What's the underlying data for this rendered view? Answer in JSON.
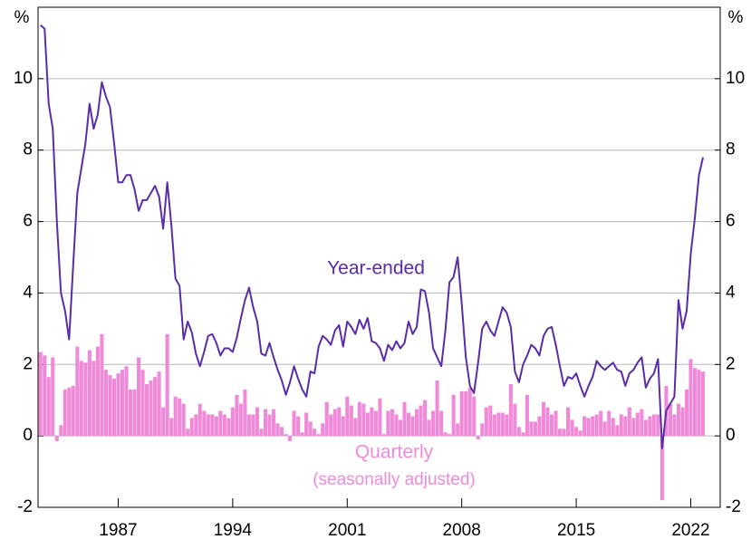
{
  "chart_data": {
    "type": "bar-line",
    "y_unit": "%",
    "annotations": [
      {
        "text": "Year-ended",
        "series": 1
      },
      {
        "text": "Quarterly",
        "series": 0
      },
      {
        "text": "(seasonally adjusted)",
        "series": 0
      }
    ],
    "x": [
      1982.25,
      1982.5,
      1982.75,
      1983,
      1983.25,
      1983.5,
      1983.75,
      1984,
      1984.25,
      1984.5,
      1984.75,
      1985,
      1985.25,
      1985.5,
      1985.75,
      1986,
      1986.25,
      1986.5,
      1986.75,
      1987,
      1987.25,
      1987.5,
      1987.75,
      1988,
      1988.25,
      1988.5,
      1988.75,
      1989,
      1989.25,
      1989.5,
      1989.75,
      1990,
      1990.25,
      1990.5,
      1990.75,
      1991,
      1991.25,
      1991.5,
      1991.75,
      1992,
      1992.25,
      1992.5,
      1992.75,
      1993,
      1993.25,
      1993.5,
      1993.75,
      1994,
      1994.25,
      1994.5,
      1994.75,
      1995,
      1995.25,
      1995.5,
      1995.75,
      1996,
      1996.25,
      1996.5,
      1996.75,
      1997,
      1997.25,
      1997.5,
      1997.75,
      1998,
      1998.25,
      1998.5,
      1998.75,
      1999,
      1999.25,
      1999.5,
      1999.75,
      2000,
      2000.25,
      2000.5,
      2000.75,
      2001,
      2001.25,
      2001.5,
      2001.75,
      2002,
      2002.25,
      2002.5,
      2002.75,
      2003,
      2003.25,
      2003.5,
      2003.75,
      2004,
      2004.25,
      2004.5,
      2004.75,
      2005,
      2005.25,
      2005.5,
      2005.75,
      2006,
      2006.25,
      2006.5,
      2006.75,
      2007,
      2007.25,
      2007.5,
      2007.75,
      2008,
      2008.25,
      2008.5,
      2008.75,
      2009,
      2009.25,
      2009.5,
      2009.75,
      2010,
      2010.25,
      2010.5,
      2010.75,
      2011,
      2011.25,
      2011.5,
      2011.75,
      2012,
      2012.25,
      2012.5,
      2012.75,
      2013,
      2013.25,
      2013.5,
      2013.75,
      2014,
      2014.25,
      2014.5,
      2014.75,
      2015,
      2015.25,
      2015.5,
      2015.75,
      2016,
      2016.25,
      2016.5,
      2016.75,
      2017,
      2017.25,
      2017.5,
      2017.75,
      2018,
      2018.25,
      2018.5,
      2018.75,
      2019,
      2019.25,
      2019.5,
      2019.75,
      2020,
      2020.25,
      2020.5,
      2020.75,
      2021,
      2021.25,
      2021.5,
      2021.75,
      2022,
      2022.25,
      2022.5,
      2022.75
    ],
    "series": [
      {
        "name": "Quarterly",
        "type": "bar",
        "color": "#f08ad8",
        "values": [
          2.35,
          2.25,
          1.65,
          2.2,
          -0.15,
          0.3,
          1.3,
          1.35,
          1.4,
          2.5,
          2.1,
          2.05,
          2.4,
          2.1,
          2.5,
          2.85,
          1.85,
          1.7,
          1.6,
          1.75,
          1.85,
          1.95,
          1.3,
          1.3,
          2.2,
          1.85,
          1.45,
          1.55,
          1.65,
          1.8,
          0.8,
          2.85,
          0.5,
          1.1,
          1.05,
          0.9,
          0.2,
          0.5,
          0.6,
          0.9,
          0.7,
          0.6,
          0.6,
          0.55,
          0.7,
          0.6,
          0.5,
          0.8,
          1.15,
          0.9,
          1.3,
          0.6,
          0.6,
          0.8,
          0.2,
          0.75,
          0.6,
          0.75,
          0.35,
          0.25,
          0.05,
          -0.15,
          0.7,
          0.55,
          0.1,
          0.65,
          0.4,
          0.2,
          0.05,
          0.35,
          0.95,
          0.6,
          0.75,
          0.8,
          0.55,
          1.1,
          0.85,
          0.5,
          0.95,
          0.9,
          0.65,
          0.8,
          0.7,
          1.05,
          0.05,
          0.7,
          0.75,
          0.6,
          0.45,
          0.95,
          0.65,
          0.55,
          0.75,
          0.85,
          1.0,
          0.45,
          0.7,
          1.55,
          0.7,
          0.1,
          0.05,
          1.15,
          0.35,
          1.25,
          1.25,
          1.35,
          1.1,
          -0.1,
          0.35,
          0.8,
          0.85,
          0.6,
          0.65,
          0.65,
          0.6,
          1.45,
          0.9,
          0.25,
          0.1,
          1.15,
          0.4,
          0.4,
          0.55,
          0.95,
          0.8,
          0.6,
          0.7,
          0.2,
          0.2,
          0.8,
          0.45,
          0.25,
          0.15,
          0.55,
          0.5,
          0.55,
          0.6,
          0.7,
          0.4,
          0.7,
          0.5,
          0.3,
          0.6,
          0.55,
          0.8,
          0.5,
          0.65,
          0.75,
          0.45,
          0.55,
          0.6,
          0.6,
          -1.8,
          1.4,
          0.9,
          0.6,
          0.9,
          0.8,
          1.3,
          2.15,
          1.9,
          1.85,
          1.8
        ]
      },
      {
        "name": "Year-ended",
        "type": "line",
        "color": "#5a2ca8",
        "values": [
          11.5,
          11.4,
          9.3,
          8.6,
          6.0,
          4.0,
          3.5,
          2.7,
          4.8,
          6.8,
          7.5,
          8.2,
          9.3,
          8.6,
          9.0,
          9.9,
          9.5,
          9.2,
          8.2,
          7.1,
          7.1,
          7.3,
          7.3,
          6.9,
          6.3,
          6.6,
          6.6,
          6.8,
          7.0,
          6.7,
          5.8,
          7.1,
          5.9,
          4.4,
          4.2,
          2.7,
          3.2,
          2.9,
          2.3,
          1.95,
          2.35,
          2.8,
          2.85,
          2.6,
          2.25,
          2.45,
          2.45,
          2.35,
          2.75,
          3.3,
          3.8,
          4.15,
          3.6,
          3.2,
          2.3,
          2.25,
          2.6,
          2.2,
          1.85,
          1.55,
          1.15,
          1.5,
          1.95,
          1.6,
          1.3,
          1.1,
          1.8,
          1.75,
          2.5,
          2.8,
          2.7,
          2.55,
          2.95,
          3.1,
          2.5,
          3.2,
          3.05,
          2.85,
          3.25,
          3.0,
          3.3,
          2.65,
          2.6,
          2.45,
          2.1,
          2.55,
          2.4,
          2.65,
          2.45,
          2.6,
          3.2,
          2.85,
          3.05,
          4.1,
          4.05,
          3.45,
          2.45,
          2.2,
          1.95,
          2.95,
          4.3,
          4.45,
          5.0,
          3.7,
          2.2,
          1.4,
          1.2,
          2.05,
          3.0,
          3.2,
          2.95,
          2.8,
          3.2,
          3.6,
          3.45,
          3.05,
          1.8,
          1.5,
          2.0,
          2.25,
          2.55,
          2.45,
          2.25,
          2.8,
          3.0,
          3.05,
          2.55,
          1.95,
          1.4,
          1.65,
          1.6,
          1.75,
          1.4,
          1.1,
          1.4,
          1.65,
          2.1,
          1.95,
          1.85,
          1.95,
          2.05,
          1.85,
          1.8,
          1.4,
          1.75,
          1.85,
          2.05,
          2.2,
          1.35,
          1.6,
          1.75,
          2.15,
          -0.35,
          0.7,
          0.9,
          1.1,
          3.8,
          3.0,
          3.5,
          5.1,
          6.1,
          7.3,
          7.8
        ]
      }
    ],
    "xlim": [
      1982.1,
      2023.8
    ],
    "xticks": [
      1987,
      1994,
      2001,
      2008,
      2015,
      2022
    ],
    "ylim": [
      -2,
      12
    ],
    "yticks": [
      -2,
      0,
      2,
      4,
      6,
      8,
      10
    ],
    "grid": true
  }
}
